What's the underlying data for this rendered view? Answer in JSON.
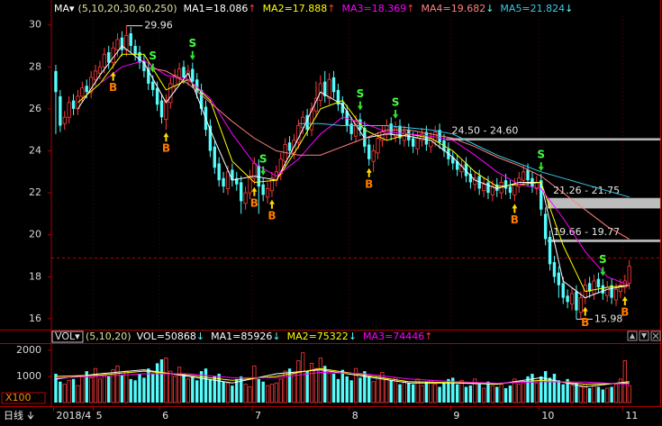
{
  "chart_data": [
    {
      "type": "candlestick",
      "header": {
        "label": "MA▾",
        "params": "(5,10,20,30,60,250)"
      },
      "up_color": "#ff3c3c",
      "down_color": "#54fcfc",
      "xlim": [
        -0.5,
        137
      ],
      "xticks": [
        {
          "value": 0,
          "label": "2018/4"
        },
        {
          "value": 9,
          "label": "5"
        },
        {
          "value": 24,
          "label": "6"
        },
        {
          "value": 45,
          "label": "7"
        },
        {
          "value": 67,
          "label": "8"
        },
        {
          "value": 90,
          "label": "9"
        },
        {
          "value": 110,
          "label": "10"
        },
        {
          "value": 129,
          "label": "11"
        }
      ],
      "ylim": [
        15.5,
        30.5
      ],
      "yticks": [
        16,
        18,
        20,
        22,
        24,
        26,
        28,
        30
      ],
      "open": [
        27.8,
        26.6,
        25.3,
        25.6,
        26.4,
        26.0,
        26.6,
        27.1,
        26.8,
        27.4,
        27.7,
        28.0,
        28.7,
        28.2,
        28.8,
        29.4,
        28.8,
        29.6,
        29.0,
        28.7,
        28.3,
        27.9,
        27.3,
        27.0,
        26.4,
        25.5,
        26.3,
        27.1,
        27.5,
        28.0,
        27.4,
        27.9,
        27.4,
        26.9,
        26.1,
        25.2,
        24.2,
        23.4,
        22.7,
        22.2,
        23.1,
        22.7,
        22.5,
        21.5,
        22.0,
        22.7,
        23.3,
        22.4,
        21.8,
        22.1,
        22.6,
        22.9,
        23.5,
        24.4,
        23.9,
        24.4,
        25.1,
        25.7,
        25.0,
        25.9,
        26.4,
        27.3,
        26.5,
        27.5,
        26.9,
        26.3,
        25.9,
        25.3,
        24.7,
        25.5,
        25.1,
        24.3,
        23.5,
        23.9,
        24.5,
        24.8,
        25.3,
        24.7,
        25.2,
        24.5,
        25.0,
        24.6,
        24.1,
        24.5,
        24.9,
        24.2,
        24.5,
        25.0,
        24.5,
        24.1,
        23.7,
        23.5,
        23.0,
        23.4,
        22.9,
        22.4,
        22.8,
        22.1,
        22.5,
        21.9,
        22.4,
        22.0,
        22.6,
        22.3,
        21.9,
        22.3,
        22.6,
        23.1,
        22.7,
        22.2,
        22.6,
        21.0,
        19.9,
        18.7,
        18.2,
        17.7,
        17.1,
        16.7,
        17.3,
        16.3,
        17.0,
        17.7,
        17.2,
        17.9,
        17.6,
        17.1,
        17.6,
        16.9,
        17.3,
        17.5,
        17.7
      ],
      "high": [
        28.1,
        26.9,
        25.9,
        26.6,
        26.7,
        26.9,
        27.3,
        27.4,
        27.8,
        28.1,
        28.3,
        28.9,
        29.0,
        29.2,
        29.6,
        29.7,
        29.96,
        29.9,
        29.3,
        29.0,
        28.6,
        28.2,
        27.6,
        27.3,
        26.7,
        26.7,
        27.5,
        27.9,
        28.2,
        28.3,
        28.1,
        28.2,
        27.7,
        27.2,
        26.4,
        25.5,
        24.5,
        23.7,
        23.0,
        23.3,
        23.4,
        23.0,
        22.8,
        22.3,
        23.1,
        23.7,
        23.6,
        22.7,
        22.5,
        23.0,
        23.3,
        23.9,
        24.6,
        24.7,
        24.8,
        25.5,
        25.9,
        26.0,
        26.3,
        27.3,
        27.6,
        27.8,
        27.7,
        27.8,
        27.2,
        26.6,
        26.2,
        25.6,
        25.7,
        25.8,
        25.4,
        24.6,
        24.3,
        24.9,
        25.2,
        25.5,
        25.6,
        25.4,
        25.5,
        25.2,
        25.3,
        24.9,
        24.9,
        25.1,
        25.2,
        24.9,
        25.2,
        25.3,
        24.8,
        24.4,
        24.0,
        23.8,
        23.6,
        23.7,
        23.2,
        23.0,
        23.1,
        22.7,
        22.8,
        22.6,
        22.7,
        22.8,
        22.9,
        22.6,
        22.7,
        23.0,
        23.3,
        23.4,
        23.0,
        22.8,
        22.9,
        21.3,
        20.2,
        19.0,
        18.5,
        18.0,
        17.4,
        17.5,
        17.6,
        17.3,
        17.9,
        18.0,
        18.1,
        18.2,
        17.9,
        17.8,
        17.9,
        17.7,
        17.9,
        18.1,
        18.8
      ],
      "low": [
        24.8,
        24.9,
        25.0,
        25.3,
        25.7,
        25.7,
        26.3,
        26.5,
        26.5,
        27.1,
        27.4,
        27.7,
        27.9,
        27.9,
        28.5,
        28.5,
        28.5,
        28.7,
        28.3,
        27.9,
        27.5,
        26.9,
        26.6,
        25.9,
        25.3,
        25.0,
        26.0,
        26.8,
        27.2,
        27.2,
        27.1,
        27.0,
        26.5,
        25.7,
        24.7,
        23.7,
        22.9,
        22.3,
        22.0,
        21.9,
        22.3,
        22.1,
        21.0,
        21.2,
        21.7,
        22.4,
        21.0,
        21.6,
        21.5,
        21.8,
        22.3,
        22.6,
        23.2,
        23.7,
        23.6,
        24.1,
        24.8,
        24.7,
        24.7,
        25.6,
        26.1,
        26.3,
        26.2,
        26.5,
        25.9,
        25.5,
        24.9,
        24.5,
        24.4,
        24.7,
        23.9,
        23.3,
        23.0,
        23.6,
        24.2,
        24.5,
        24.5,
        24.4,
        24.3,
        24.2,
        24.2,
        23.9,
        23.8,
        24.2,
        24.0,
        23.9,
        24.2,
        24.1,
        23.7,
        23.3,
        23.1,
        22.8,
        22.7,
        22.5,
        22.2,
        22.1,
        21.9,
        21.8,
        21.7,
        21.6,
        21.8,
        21.7,
        21.9,
        21.7,
        21.6,
        22.0,
        22.3,
        22.3,
        22.0,
        21.9,
        20.9,
        19.5,
        18.3,
        17.7,
        17.0,
        16.7,
        16.5,
        16.4,
        15.98,
        16.0,
        16.7,
        17.0,
        16.9,
        17.2,
        16.9,
        16.8,
        16.7,
        16.6,
        17.0,
        17.2,
        17.4
      ],
      "close": [
        26.8,
        25.2,
        25.6,
        26.3,
        26.0,
        26.6,
        27.0,
        26.8,
        27.5,
        27.8,
        28.0,
        28.6,
        28.2,
        28.9,
        29.3,
        28.8,
        29.5,
        29.0,
        28.6,
        28.2,
        27.8,
        27.2,
        26.9,
        26.2,
        25.6,
        26.4,
        27.2,
        27.6,
        27.9,
        27.5,
        27.8,
        27.3,
        26.8,
        26.0,
        25.0,
        24.0,
        23.2,
        22.6,
        22.3,
        23.0,
        22.6,
        22.4,
        21.6,
        22.0,
        22.8,
        23.4,
        22.3,
        21.9,
        22.2,
        22.7,
        23.0,
        23.6,
        24.3,
        24.0,
        24.5,
        25.2,
        25.6,
        25.0,
        26.0,
        26.5,
        27.2,
        26.6,
        27.4,
        26.8,
        26.2,
        25.8,
        25.2,
        24.8,
        25.4,
        25.0,
        24.2,
        23.6,
        24.0,
        24.6,
        24.9,
        25.2,
        24.8,
        25.1,
        24.6,
        24.9,
        24.5,
        24.2,
        24.6,
        24.8,
        24.3,
        24.6,
        24.9,
        24.4,
        24.0,
        23.6,
        23.4,
        23.1,
        23.3,
        22.8,
        22.5,
        22.7,
        22.2,
        22.4,
        22.0,
        22.3,
        22.1,
        22.5,
        22.2,
        22.0,
        22.4,
        22.7,
        23.0,
        22.6,
        22.3,
        22.5,
        21.2,
        19.8,
        18.6,
        18.0,
        17.6,
        17.0,
        16.8,
        17.2,
        16.4,
        17.0,
        17.6,
        17.3,
        17.8,
        17.5,
        17.2,
        17.5,
        17.0,
        17.4,
        17.6,
        17.8,
        18.5
      ],
      "ma_x": [
        0,
        5,
        10,
        15,
        20,
        25,
        30,
        35,
        40,
        45,
        50,
        55,
        60,
        65,
        70,
        75,
        80,
        85,
        90,
        95,
        100,
        105,
        110,
        115,
        120,
        125,
        130
      ],
      "ma": [
        {
          "name": "MA1=18.086",
          "trend": "↑",
          "trend_color": "#ff3c3c",
          "color": "#ffffff",
          "values": [
            null,
            26.0,
            27.6,
            29.0,
            28.2,
            26.3,
            27.7,
            25.0,
            22.6,
            22.8,
            22.6,
            24.6,
            26.8,
            26.2,
            24.6,
            24.8,
            24.7,
            24.5,
            23.7,
            22.6,
            22.2,
            22.5,
            22.5,
            17.8,
            17.0,
            17.4,
            17.6
          ]
        },
        {
          "name": "MA2=17.888",
          "trend": "↑",
          "trend_color": "#ff3c3c",
          "color": "#ffff00",
          "values": [
            null,
            26.3,
            27.2,
            28.6,
            28.6,
            26.9,
            27.4,
            26.4,
            23.5,
            22.5,
            22.6,
            24.2,
            26.0,
            26.4,
            25.0,
            24.5,
            24.8,
            24.6,
            24.0,
            23.0,
            22.3,
            22.4,
            22.5,
            19.5,
            17.3,
            17.5,
            17.6
          ]
        },
        {
          "name": "MA3=18.369",
          "trend": "↑",
          "trend_color": "#ff3c3c",
          "color": "#ff00ff",
          "values": [
            null,
            null,
            27.2,
            28.0,
            28.3,
            27.6,
            27.4,
            26.5,
            24.8,
            23.4,
            22.8,
            23.6,
            24.8,
            25.6,
            25.3,
            24.9,
            24.8,
            24.7,
            24.5,
            23.8,
            23.0,
            22.4,
            22.2,
            20.8,
            19.2,
            18.0,
            17.6
          ]
        },
        {
          "name": "MA4=19.682",
          "trend": "↓",
          "trend_color": "#54fcfc",
          "color": "#ff8080",
          "values": [
            null,
            null,
            null,
            null,
            28.0,
            27.8,
            27.2,
            26.3,
            25.4,
            24.6,
            24.0,
            23.8,
            23.8,
            24.2,
            24.6,
            25.0,
            25.0,
            24.8,
            24.6,
            24.2,
            23.7,
            23.3,
            22.8,
            22.0,
            21.2,
            20.4,
            19.8
          ]
        },
        {
          "name": "MA5=21.824",
          "trend": "↓",
          "trend_color": "#54fcfc",
          "color": "#3cc8e8",
          "values": [
            null,
            null,
            null,
            null,
            null,
            null,
            null,
            null,
            null,
            null,
            null,
            25.3,
            25.3,
            25.2,
            25.2,
            25.2,
            25.1,
            25.0,
            24.8,
            24.3,
            23.8,
            23.4,
            23.0,
            22.7,
            22.4,
            22.1,
            21.8
          ]
        }
      ],
      "annotations": [
        {
          "value": 29.96,
          "index": 16
        },
        {
          "value": 15.98,
          "index": 118
        }
      ],
      "levels": [
        {
          "label": "24.50 - 24.60",
          "low": 24.5,
          "high": 24.6,
          "from_index": 89
        },
        {
          "label": "21.26 - 21.75",
          "low": 21.26,
          "high": 21.75,
          "from_index": 112
        },
        {
          "label": "19.66 - 19.77",
          "low": 19.66,
          "high": 19.77,
          "from_index": 112
        }
      ],
      "ref_line": 18.9,
      "buy_signals": [
        {
          "index": 13,
          "label": "B"
        },
        {
          "index": 25,
          "label": "B"
        },
        {
          "index": 45,
          "label": "B"
        },
        {
          "index": 49,
          "label": "B"
        },
        {
          "index": 71,
          "label": "B"
        },
        {
          "index": 104,
          "label": "B"
        },
        {
          "index": 120,
          "label": "B"
        },
        {
          "index": 129,
          "label": "B"
        }
      ],
      "sell_signals": [
        {
          "index": 22,
          "label": "S"
        },
        {
          "index": 31,
          "label": "S"
        },
        {
          "index": 47,
          "label": "S"
        },
        {
          "index": 69,
          "label": "S"
        },
        {
          "index": 77,
          "label": "S"
        },
        {
          "index": 110,
          "label": "S"
        },
        {
          "index": 124,
          "label": "S"
        }
      ]
    },
    {
      "type": "volume",
      "header": {
        "label": "VOL▾",
        "params": "(5,10,20)",
        "current": "VOL=50868",
        "trend": "↓",
        "trend_color": "#54fcfc"
      },
      "unit_label": "X100",
      "period_label": "日线",
      "ylim": [
        0,
        2200
      ],
      "yticks": [
        1000,
        2000
      ],
      "values": [
        1100,
        800,
        700,
        850,
        900,
        650,
        1000,
        1200,
        950,
        1300,
        900,
        1100,
        1000,
        1250,
        1400,
        1050,
        1200,
        900,
        850,
        1100,
        950,
        1300,
        1100,
        1500,
        1650,
        1700,
        1200,
        1000,
        1350,
        1100,
        900,
        1000,
        850,
        1200,
        1300,
        900,
        1000,
        1100,
        800,
        750,
        650,
        900,
        1000,
        700,
        600,
        1400,
        900,
        800,
        650,
        700,
        750,
        900,
        1200,
        1300,
        1100,
        1600,
        1900,
        1200,
        1500,
        1300,
        1700,
        1400,
        1200,
        1100,
        900,
        1250,
        1000,
        850,
        1300,
        950,
        1200,
        1000,
        800,
        1050,
        1150,
        900,
        850,
        950,
        700,
        800,
        750,
        700,
        900,
        650,
        800,
        850,
        700,
        600,
        750,
        900,
        950,
        700,
        850,
        600,
        650,
        900,
        700,
        550,
        800,
        650,
        600,
        700,
        550,
        650,
        900,
        700,
        800,
        1000,
        1100,
        750,
        1000,
        1200,
        950,
        1100,
        850,
        700,
        900,
        650,
        750,
        600,
        700,
        550,
        650,
        600,
        500,
        550,
        600,
        700,
        900,
        1600,
        650
      ],
      "ma_x": [
        0,
        10,
        20,
        30,
        40,
        50,
        60,
        70,
        80,
        90,
        100,
        110,
        120,
        130
      ],
      "ma": [
        {
          "name": "MA1=85926",
          "trend": "↓",
          "trend_color": "#54fcfc",
          "color": "#ffffff",
          "values": [
            900,
            1100,
            1250,
            1000,
            750,
            1100,
            1250,
            1000,
            750,
            750,
            700,
            950,
            600,
            800
          ]
        },
        {
          "name": "MA2=75322",
          "trend": "↓",
          "trend_color": "#54fcfc",
          "color": "#ffff00",
          "values": [
            1000,
            1050,
            1200,
            1050,
            850,
            1000,
            1300,
            1050,
            800,
            760,
            720,
            850,
            700,
            750
          ]
        },
        {
          "name": "MA3=74446",
          "trend": "↑",
          "trend_color": "#ff3c3c",
          "color": "#ff00ff",
          "values": [
            950,
            1000,
            1100,
            1100,
            950,
            950,
            1150,
            1100,
            900,
            800,
            740,
            800,
            780,
            700
          ]
        }
      ]
    }
  ]
}
